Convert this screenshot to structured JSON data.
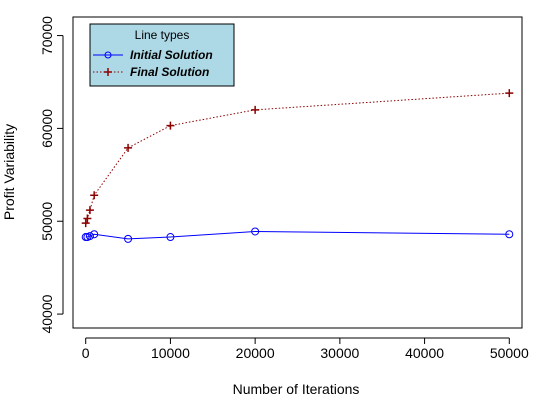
{
  "chart_data": {
    "type": "line",
    "xlabel": "Number of Iterations",
    "ylabel": "Profit Variability",
    "xlim": [
      -1500,
      51500
    ],
    "ylim": [
      38500,
      72000
    ],
    "x_ticks": [
      0,
      10000,
      20000,
      30000,
      40000,
      50000
    ],
    "y_ticks": [
      40000,
      50000,
      60000,
      70000
    ],
    "legend": {
      "title": "Line types",
      "position": "top-left",
      "background": "#add8e6"
    },
    "series": [
      {
        "name": "Initial Solution",
        "color": "#0000ff",
        "line_style": "solid",
        "marker": "circle",
        "x": [
          0,
          200,
          500,
          1000,
          5000,
          10000,
          20000,
          50000
        ],
        "y": [
          48300,
          48300,
          48400,
          48600,
          48100,
          48300,
          48900,
          48600
        ]
      },
      {
        "name": "Final Solution",
        "color": "#8b0000",
        "line_style": "dotted",
        "marker": "plus",
        "x": [
          0,
          200,
          500,
          1000,
          5000,
          10000,
          20000,
          50000
        ],
        "y": [
          49800,
          50300,
          51200,
          52800,
          57900,
          60300,
          62000,
          63800
        ]
      }
    ]
  }
}
